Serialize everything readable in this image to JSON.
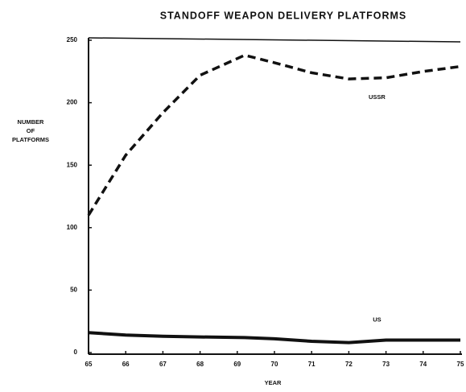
{
  "chart_data": {
    "type": "line",
    "title": "STANDOFF WEAPON DELIVERY PLATFORMS",
    "y_label": [
      "NUMBER",
      "OF",
      "PLATFORMS"
    ],
    "x_label": "YEAR",
    "x": [
      65,
      66,
      67,
      68,
      69.2,
      70,
      71,
      72,
      73,
      74,
      75
    ],
    "series": [
      {
        "name": "USSR",
        "color": "#111111",
        "dashed": true,
        "values": [
          110,
          158,
          192,
          222,
          238,
          232,
          224,
          219,
          220,
          225,
          229
        ]
      },
      {
        "name": "US",
        "color": "#111111",
        "dashed": false,
        "values": [
          16,
          14,
          13,
          12.5,
          12,
          11,
          9,
          8,
          10,
          10,
          10
        ]
      }
    ],
    "xlim": [
      65,
      75
    ],
    "xticks": [
      65,
      66,
      67,
      68,
      69,
      70,
      71,
      72,
      73,
      74,
      75
    ],
    "ylim": [
      0,
      250
    ],
    "yticks": [
      0,
      50,
      100,
      150,
      200,
      250
    ],
    "grid": false
  }
}
